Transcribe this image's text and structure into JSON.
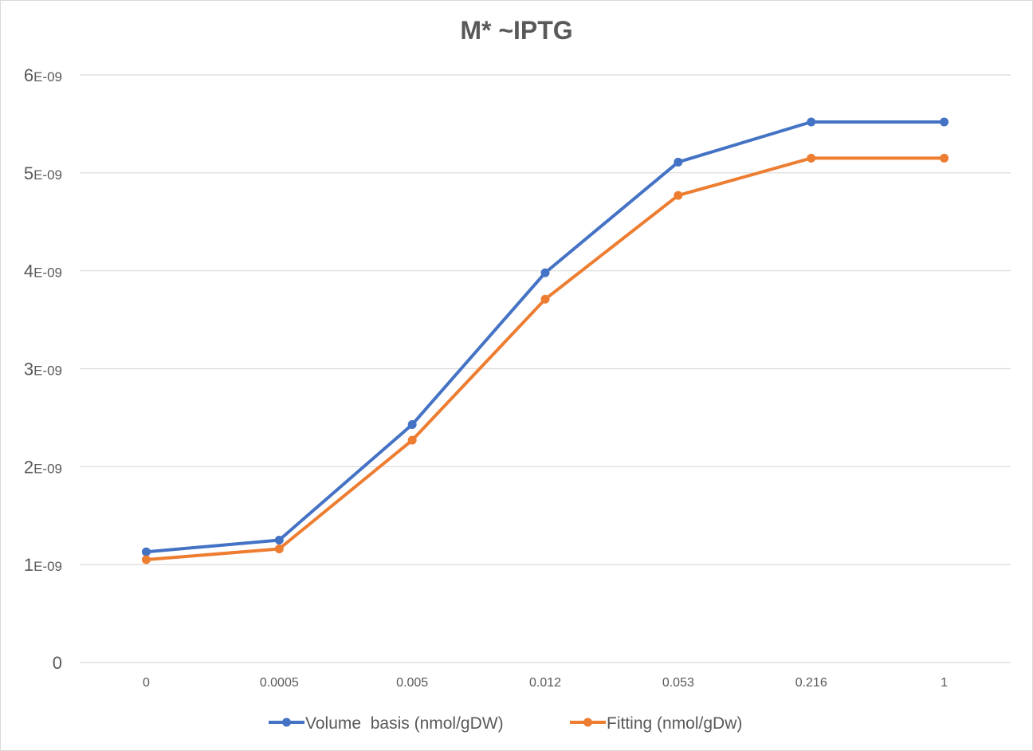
{
  "chart_data": {
    "type": "line",
    "title": "M* ~IPTG",
    "categories": [
      "0",
      "0.0005",
      "0.005",
      "0.012",
      "0.053",
      "0.216",
      "1"
    ],
    "y_ticks": [
      {
        "value": 0,
        "big": "0",
        "small": ""
      },
      {
        "value": 1e-09,
        "big": "1",
        "small": "E-09"
      },
      {
        "value": 2e-09,
        "big": "2",
        "small": "E-09"
      },
      {
        "value": 3e-09,
        "big": "3",
        "small": "E-09"
      },
      {
        "value": 4e-09,
        "big": "4",
        "small": "E-09"
      },
      {
        "value": 5e-09,
        "big": "5",
        "small": "E-09"
      },
      {
        "value": 6e-09,
        "big": "6",
        "small": "E-09"
      }
    ],
    "ylim": [
      0,
      6e-09
    ],
    "grid": true,
    "legend_position": "bottom",
    "series": [
      {
        "name": "Volume  basis (nmol/gDW)",
        "color": "#4472c4",
        "values": [
          1.13e-09,
          1.25e-09,
          2.43e-09,
          3.98e-09,
          5.11e-09,
          5.52e-09,
          5.52e-09
        ]
      },
      {
        "name": "Fitting (nmol/gDw)",
        "color": "#ed7d31",
        "values": [
          1.05e-09,
          1.16e-09,
          2.27e-09,
          3.71e-09,
          4.77e-09,
          5.15e-09,
          5.15e-09
        ]
      }
    ]
  }
}
